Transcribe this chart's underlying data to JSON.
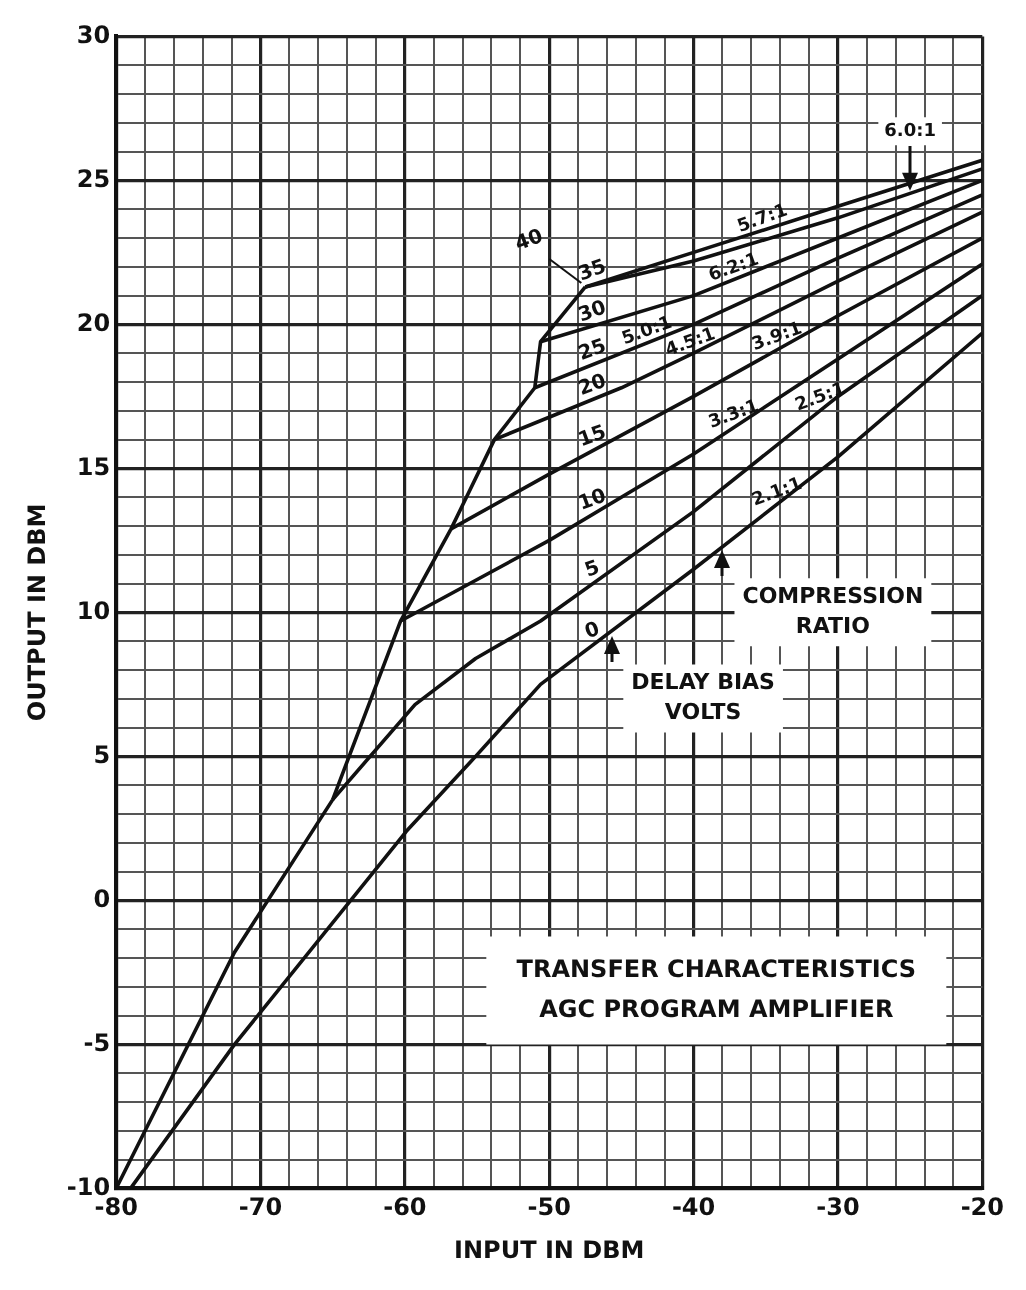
{
  "chart_data": {
    "type": "line",
    "title": "TRANSFER CHARACTERISTICS AGC PROGRAM AMPLIFIER",
    "xlabel": "INPUT IN DBM",
    "ylabel": "OUTPUT IN DBM",
    "xlim": [
      -80,
      -20
    ],
    "ylim": [
      -10,
      30
    ],
    "xticks": [
      -80,
      {
        "value": -78,
        "label": null
      },
      {
        "value": -76,
        "label": null
      },
      {
        "value": -74,
        "label": null
      },
      {
        "value": -72,
        "label": null
      },
      -70,
      {
        "value": -68,
        "label": null
      },
      {
        "value": -66,
        "label": null
      },
      {
        "value": -64,
        "label": null
      },
      {
        "value": -62,
        "label": null
      },
      -60,
      {
        "value": -58,
        "label": null
      },
      {
        "value": -56,
        "label": null
      },
      {
        "value": -54,
        "label": null
      },
      {
        "value": -52,
        "label": null
      },
      -50,
      {
        "value": -48,
        "label": null
      },
      {
        "value": -46,
        "label": null
      },
      {
        "value": -44,
        "label": null
      },
      {
        "value": -42,
        "label": null
      },
      -40,
      {
        "value": -38,
        "label": null
      },
      {
        "value": -36,
        "label": null
      },
      {
        "value": -34,
        "label": null
      },
      {
        "value": -32,
        "label": null
      },
      -30,
      {
        "value": -28,
        "label": null
      },
      {
        "value": -26,
        "label": null
      },
      {
        "value": -24,
        "label": null
      },
      {
        "value": -22,
        "label": null
      },
      -20
    ],
    "yticks": [
      -10,
      {
        "value": -9,
        "label": null
      },
      {
        "value": -8,
        "label": null
      },
      {
        "value": -7,
        "label": null
      },
      {
        "value": -6,
        "label": null
      },
      -5,
      {
        "value": -4,
        "label": null
      },
      {
        "value": -3,
        "label": null
      },
      {
        "value": -2,
        "label": null
      },
      {
        "value": -1,
        "label": null
      },
      0,
      {
        "value": 1,
        "label": null
      },
      {
        "value": 2,
        "label": null
      },
      {
        "value": 3,
        "label": null
      },
      {
        "value": 4,
        "label": null
      },
      5,
      {
        "value": 6,
        "label": null
      },
      {
        "value": 7,
        "label": null
      },
      {
        "value": 8,
        "label": null
      },
      {
        "value": 9,
        "label": null
      },
      10,
      {
        "value": 11,
        "label": null
      },
      {
        "value": 12,
        "label": null
      },
      {
        "value": 13,
        "label": null
      },
      {
        "value": 14,
        "label": null
      },
      15,
      {
        "value": 16,
        "label": null
      },
      {
        "value": 17,
        "label": null
      },
      {
        "value": 18,
        "label": null
      },
      {
        "value": 19,
        "label": null
      },
      20,
      {
        "value": 21,
        "label": null
      },
      {
        "value": 22,
        "label": null
      },
      {
        "value": 23,
        "label": null
      },
      {
        "value": 24,
        "label": null
      },
      25,
      {
        "value": 26,
        "label": null
      },
      {
        "value": 27,
        "label": null
      },
      {
        "value": 28,
        "label": null
      },
      {
        "value": 29,
        "label": null
      },
      30
    ],
    "grid": true,
    "marker": "none",
    "line_style": "solid",
    "series": [
      {
        "color": "#111111",
        "x": [
          -80,
          -71.8,
          -65,
          -60.3,
          -56.8,
          -53.8,
          -51,
          -50.6,
          -47.5
        ],
        "values": [
          -10,
          -1.8,
          3.5,
          9.7,
          12.9,
          16.0,
          17.8,
          19.4,
          21.3
        ]
      },
      {
        "name": "0",
        "color": "#111111",
        "x": [
          -79,
          -71.8,
          -59.9,
          -55.1,
          -50.6,
          -40,
          -30,
          -20
        ],
        "values": [
          -10,
          -5,
          2.4,
          5,
          7.5,
          11.5,
          15.4,
          19.7
        ]
      },
      {
        "name": "5",
        "color": "#111111",
        "x": [
          -65,
          -59.3,
          -55.1,
          -50.6,
          -40,
          -30,
          -20
        ],
        "values": [
          3.5,
          6.8,
          8.4,
          9.7,
          13.5,
          17.5,
          21.0
        ]
      },
      {
        "name": "10",
        "color": "#111111",
        "x": [
          -60.3,
          -50,
          -40,
          -30,
          -20
        ],
        "values": [
          9.7,
          12.5,
          15.5,
          18.8,
          22.1
        ]
      },
      {
        "name": "15",
        "color": "#111111",
        "x": [
          -56.8,
          -50,
          -40,
          -30,
          -20
        ],
        "values": [
          12.9,
          14.8,
          17.5,
          20.3,
          23.0
        ]
      },
      {
        "name": "20",
        "color": "#111111",
        "x": [
          -53.8,
          -45,
          -40,
          -30,
          -20
        ],
        "values": [
          16.0,
          17.8,
          19.0,
          21.5,
          23.9
        ]
      },
      {
        "name": "25",
        "color": "#111111",
        "x": [
          -51,
          -40,
          -30,
          -20
        ],
        "values": [
          17.8,
          20.0,
          22.3,
          24.5
        ]
      },
      {
        "name": "30",
        "color": "#111111",
        "x": [
          -50.6,
          -40,
          -30,
          -20
        ],
        "values": [
          19.4,
          21.0,
          23.0,
          25.0
        ]
      },
      {
        "name": "35",
        "color": "#111111",
        "x": [
          -47.5,
          -40,
          -30,
          -20
        ],
        "values": [
          21.3,
          22.2,
          23.7,
          25.4
        ]
      },
      {
        "name": "40",
        "color": "#111111",
        "x": [
          -47.5,
          -40,
          -30,
          -20
        ],
        "values": [
          21.3,
          22.5,
          24.1,
          25.7
        ]
      }
    ],
    "annotations": [
      {
        "text": "2.1:1",
        "x": -34,
        "y": 13.8
      },
      {
        "text": "2.5:1",
        "x": -31,
        "y": 17.1
      },
      {
        "text": "3.3:1",
        "x": -37,
        "y": 16.5
      },
      {
        "text": "3.9:1",
        "x": -34,
        "y": 19.2
      },
      {
        "text": "4.5:1",
        "x": -40,
        "y": 19.0
      },
      {
        "text": "5.0:1",
        "x": -43,
        "y": 19.4
      },
      {
        "text": "6.2:1",
        "x": -37,
        "y": 21.6
      },
      {
        "text": "6.0:1",
        "x": -25,
        "y": 24.6
      },
      {
        "text": "5.7:1",
        "x": -35,
        "y": 23.3
      },
      {
        "text": "COMPRESSION RATIO",
        "x": -38,
        "y": 12.3
      },
      {
        "text": "DELAY BIAS VOLTS",
        "x": -45.7,
        "y": 9.3
      }
    ]
  }
}
